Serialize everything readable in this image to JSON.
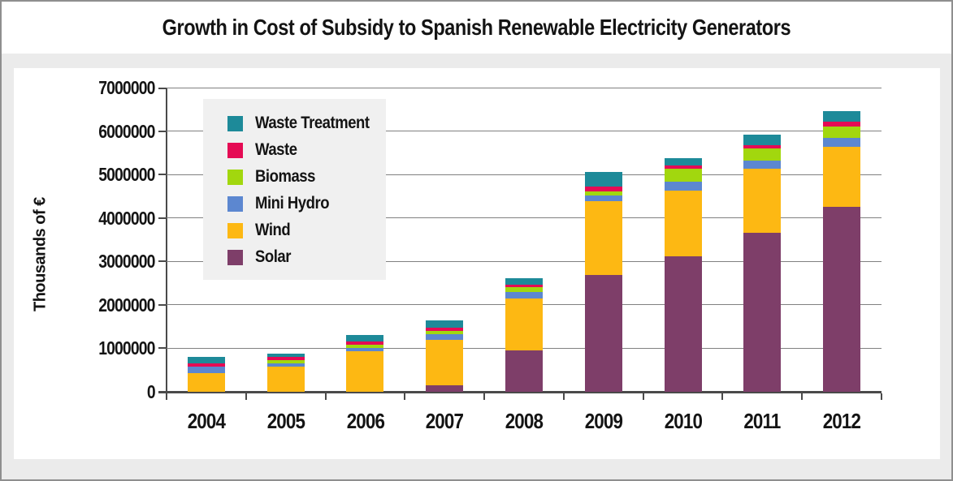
{
  "title": "Growth in Cost of Subsidy to Spanish Renewable Electricity Generators",
  "chart_data": {
    "type": "bar",
    "stacked": true,
    "title": "Growth in Cost of Subsidy to Spanish Renewable Electricity Generators",
    "xlabel": "",
    "ylabel": "Thousands of €",
    "categories": [
      "2004",
      "2005",
      "2006",
      "2007",
      "2008",
      "2009",
      "2010",
      "2011",
      "2012"
    ],
    "ylim": [
      0,
      7000000
    ],
    "yticks": [
      "0",
      "1000000",
      "2000000",
      "3000000",
      "4000000",
      "5000000",
      "6000000",
      "7000000"
    ],
    "grid": true,
    "legend_position": "upper-left-inside",
    "stack_order_bottom_to_top": [
      "Solar",
      "Wind",
      "Mini Hydro",
      "Biomass",
      "Waste",
      "Waste Treatment"
    ],
    "series": [
      {
        "name": "Waste Treatment",
        "color": "#1d8a99",
        "values": [
          145000,
          90000,
          150000,
          175000,
          140000,
          330000,
          170000,
          235000,
          240000
        ]
      },
      {
        "name": "Waste",
        "color": "#e50b54",
        "values": [
          75000,
          60000,
          75000,
          70000,
          65000,
          105000,
          80000,
          80000,
          110000
        ]
      },
      {
        "name": "Biomass",
        "color": "#a2d70e",
        "values": [
          0,
          80000,
          65000,
          70000,
          105000,
          110000,
          300000,
          275000,
          275000
        ]
      },
      {
        "name": "Mini Hydro",
        "color": "#5c87d0",
        "values": [
          150000,
          75000,
          75000,
          140000,
          145000,
          125000,
          200000,
          185000,
          205000
        ]
      },
      {
        "name": "Wind",
        "color": "#fdb813",
        "values": [
          430000,
          580000,
          940000,
          1040000,
          1195000,
          1700000,
          1515000,
          1485000,
          1370000
        ]
      },
      {
        "name": "Solar",
        "color": "#7e3e69",
        "values": [
          0,
          0,
          0,
          150000,
          960000,
          2685000,
          3120000,
          3650000,
          4260000
        ]
      }
    ],
    "totals": [
      800000,
      885000,
      1305000,
      1645000,
      2610000,
      5055000,
      5385000,
      5910000,
      6460000
    ]
  },
  "colors": {
    "page_bg": "#ebebeb",
    "card_bg": "#ffffff",
    "legend_bg": "#f0f0f0",
    "gridline": "#808080",
    "axis": "#4a4a4a",
    "text": "#141414",
    "outer_border": "#8f8f8f"
  }
}
